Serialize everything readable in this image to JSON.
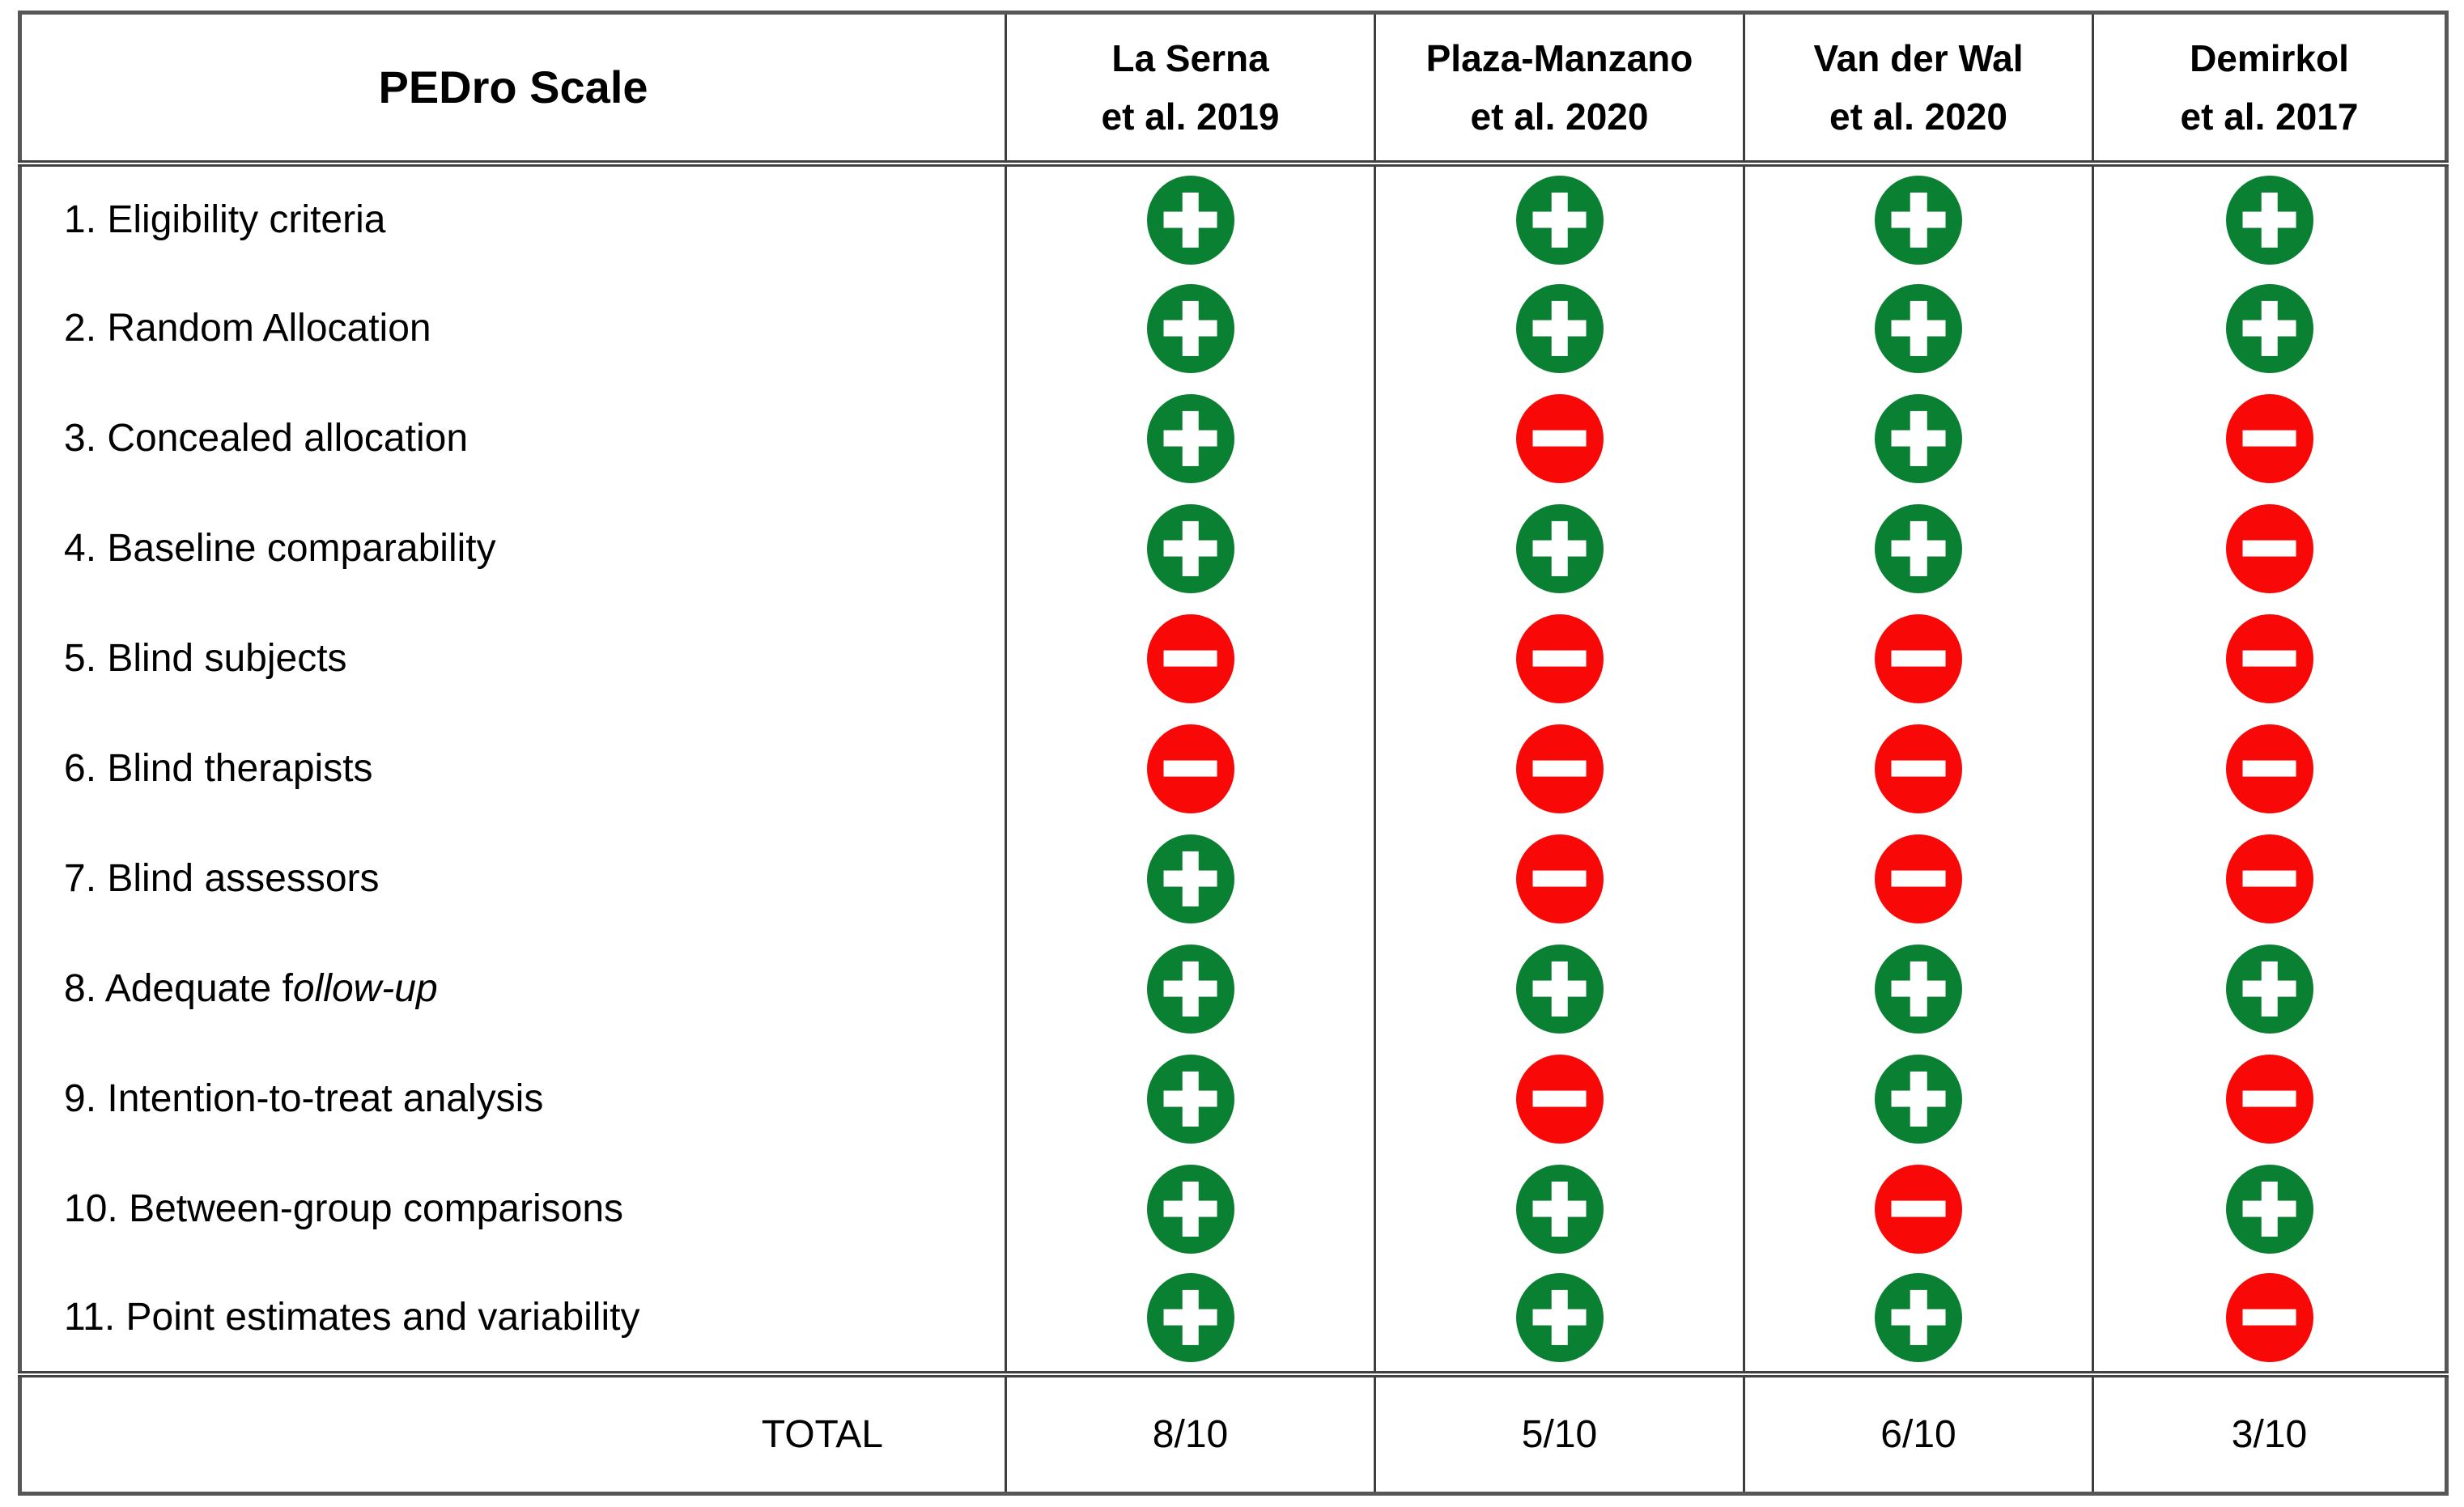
{
  "colors": {
    "plus_green": "#0A8132",
    "minus_red": "#F90808",
    "border_grey": "#575757",
    "separator_dark": "#3E3E3E",
    "text": "#000000"
  },
  "header": {
    "scale_title": "PEDro Scale",
    "studies": [
      {
        "line1": "La Serna",
        "line2": "et al. 2019"
      },
      {
        "line1": "Plaza-Manzano",
        "line2": "et al. 2020"
      },
      {
        "line1": "Van der Wal",
        "line2": "et al. 2020"
      },
      {
        "line1": "Demirkol",
        "line2": "et al. 2017"
      }
    ]
  },
  "rows": [
    {
      "label": "1. Eligibility criteria",
      "italic": "",
      "marks": [
        "plus",
        "plus",
        "plus",
        "plus"
      ]
    },
    {
      "label": "2. Random Allocation",
      "italic": "",
      "marks": [
        "plus",
        "plus",
        "plus",
        "plus"
      ]
    },
    {
      "label": "3. Concealed allocation",
      "italic": "",
      "marks": [
        "plus",
        "minus",
        "plus",
        "minus"
      ]
    },
    {
      "label": "4. Baseline comparability",
      "italic": "",
      "marks": [
        "plus",
        "plus",
        "plus",
        "minus"
      ]
    },
    {
      "label": "5. Blind subjects",
      "italic": "",
      "marks": [
        "minus",
        "minus",
        "minus",
        "minus"
      ]
    },
    {
      "label": "6. Blind therapists",
      "italic": "",
      "marks": [
        "minus",
        "minus",
        "minus",
        "minus"
      ]
    },
    {
      "label": "7. Blind assessors",
      "italic": "",
      "marks": [
        "plus",
        "minus",
        "minus",
        "minus"
      ]
    },
    {
      "label": "8. Adequate f",
      "italic": "ollow-up",
      "marks": [
        "plus",
        "plus",
        "plus",
        "plus"
      ]
    },
    {
      "label": "9. Intention-to-treat analysis",
      "italic": "",
      "marks": [
        "plus",
        "minus",
        "plus",
        "minus"
      ]
    },
    {
      "label": "10. Between-group comparisons",
      "italic": "",
      "marks": [
        "plus",
        "plus",
        "minus",
        "plus"
      ]
    },
    {
      "label": "11. Point estimates and variability",
      "italic": "",
      "marks": [
        "plus",
        "plus",
        "plus",
        "minus"
      ]
    }
  ],
  "totals": {
    "label": "TOTAL",
    "values": [
      "8/10",
      "5/10",
      "6/10",
      "3/10"
    ]
  }
}
